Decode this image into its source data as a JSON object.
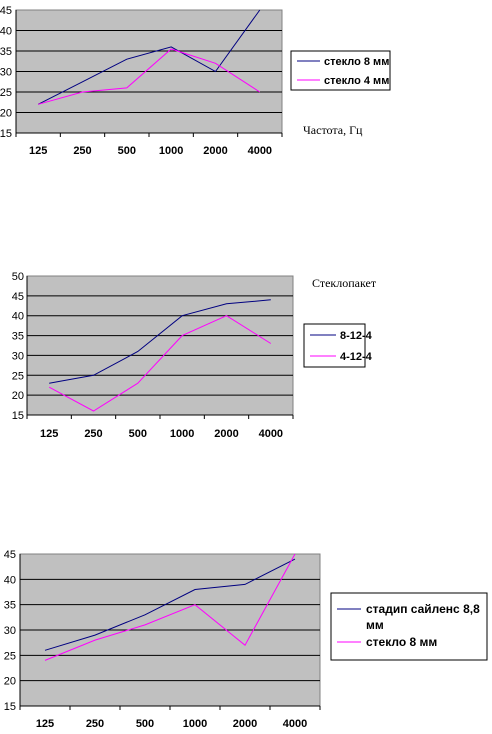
{
  "colors": {
    "plot_bg": "#c0c0c0",
    "series1": "#000080",
    "series2": "#ff00ff",
    "grid": "#000000"
  },
  "chart_data": [
    {
      "type": "line",
      "categories": [
        "125",
        "250",
        "500",
        "1000",
        "2000",
        "4000"
      ],
      "series": [
        {
          "name": "стекло 8 мм",
          "values": [
            22,
            27.5,
            33,
            36,
            30,
            45
          ]
        },
        {
          "name": "стекло 4 мм",
          "values": [
            22,
            25,
            26,
            35.5,
            32,
            25
          ]
        }
      ],
      "annotation": "Частота, Гц",
      "ylim": [
        15,
        45
      ],
      "yticks": [
        15,
        20,
        25,
        30,
        35,
        40,
        45
      ],
      "grid": true,
      "legend_position": "right"
    },
    {
      "type": "line",
      "categories": [
        "125",
        "250",
        "500",
        "1000",
        "2000",
        "4000"
      ],
      "series": [
        {
          "name": "8-12-4",
          "values": [
            23,
            25,
            31,
            40,
            43,
            44
          ]
        },
        {
          "name": "4-12-4",
          "values": [
            22,
            16,
            23,
            35,
            40,
            33
          ]
        }
      ],
      "annotation": "Стеклопакет",
      "ylim": [
        15,
        50
      ],
      "yticks": [
        15,
        20,
        25,
        30,
        35,
        40,
        45,
        50
      ],
      "grid": true,
      "legend_position": "right"
    },
    {
      "type": "line",
      "categories": [
        "125",
        "250",
        "500",
        "1000",
        "2000",
        "4000"
      ],
      "series": [
        {
          "name": "стадип сайленс 8,8 мм",
          "values": [
            26,
            29,
            33,
            38,
            39,
            44
          ]
        },
        {
          "name": "стекло 8 мм",
          "values": [
            24,
            28,
            31,
            35,
            27,
            45
          ]
        }
      ],
      "ylim": [
        15,
        45
      ],
      "yticks": [
        15,
        20,
        25,
        30,
        35,
        40,
        45
      ],
      "grid": true,
      "legend_position": "right"
    }
  ]
}
